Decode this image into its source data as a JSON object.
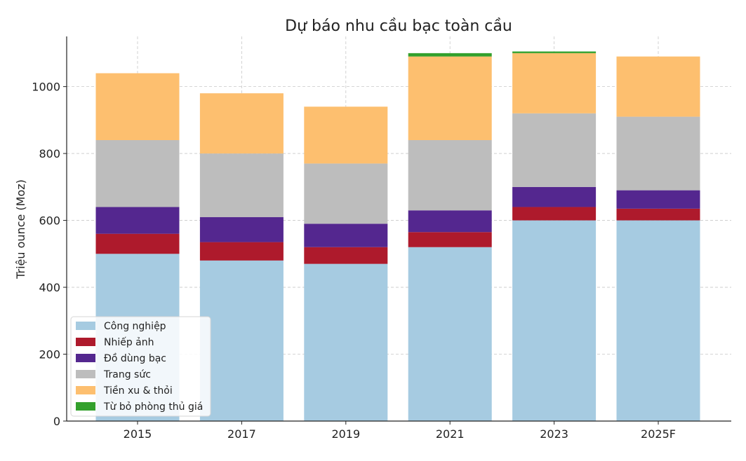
{
  "chart_data": {
    "type": "bar",
    "stacked": true,
    "title": "Dự báo nhu cầu bạc toàn cầu",
    "xlabel": "",
    "ylabel": "Triệu ounce (Moz)",
    "categories": [
      "2015",
      "2017",
      "2019",
      "2021",
      "2023",
      "2025F"
    ],
    "ylim": [
      0,
      1150
    ],
    "yticks": [
      0,
      200,
      400,
      600,
      800,
      1000
    ],
    "grid": true,
    "legend_position": "bottom-left",
    "series": [
      {
        "name": "Công nghiệp",
        "color": "#a6cbe1",
        "values": [
          500,
          480,
          470,
          520,
          600,
          600
        ]
      },
      {
        "name": "Nhiếp ảnh",
        "color": "#ae1a2c",
        "values": [
          60,
          55,
          50,
          45,
          40,
          35
        ]
      },
      {
        "name": "Đồ dùng bạc",
        "color": "#54278f",
        "values": [
          80,
          75,
          70,
          65,
          60,
          55
        ]
      },
      {
        "name": "Trang sức",
        "color": "#bdbdbd",
        "values": [
          200,
          190,
          180,
          210,
          220,
          220
        ]
      },
      {
        "name": "Tiền xu & thỏi",
        "color": "#fdbf6f",
        "values": [
          200,
          180,
          170,
          250,
          180,
          180
        ]
      },
      {
        "name": "Từ bỏ phòng thủ giá",
        "color": "#33a02c",
        "values": [
          0,
          0,
          0,
          10,
          5,
          0
        ]
      }
    ]
  }
}
